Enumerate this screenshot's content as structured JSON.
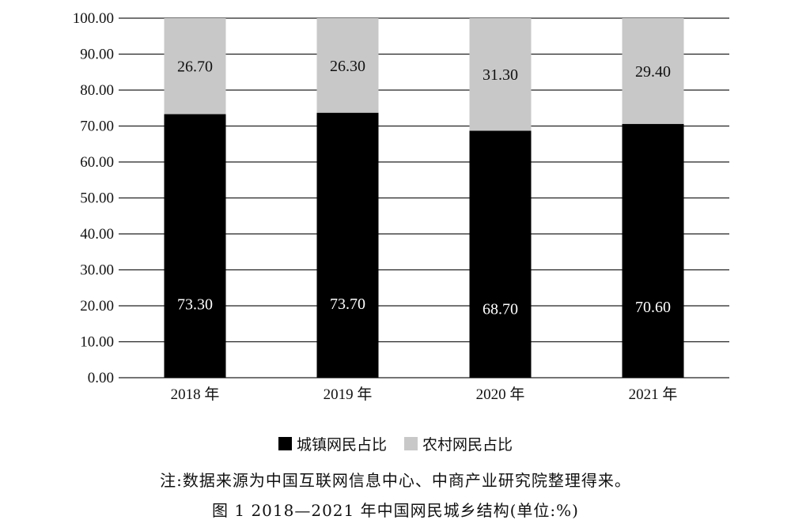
{
  "chart_data": {
    "type": "bar",
    "stacked": true,
    "categories": [
      "2018 年",
      "2019 年",
      "2020 年",
      "2021 年"
    ],
    "series": [
      {
        "name": "城镇网民占比",
        "color": "#000000",
        "label_color": "#ffffff",
        "values": [
          73.3,
          73.7,
          68.7,
          70.6
        ],
        "labels": [
          "73.30",
          "73.70",
          "68.70",
          "70.60"
        ]
      },
      {
        "name": "农村网民占比",
        "color": "#c8c8c8",
        "label_color": "#111111",
        "values": [
          26.7,
          26.3,
          31.3,
          29.4
        ],
        "labels": [
          "26.70",
          "26.30",
          "31.30",
          "29.40"
        ]
      }
    ],
    "ylim": [
      0,
      100
    ],
    "yticks": [
      "0.00",
      "10.00",
      "20.00",
      "30.00",
      "40.00",
      "50.00",
      "60.00",
      "70.00",
      "80.00",
      "90.00",
      "100.00"
    ],
    "grid": true,
    "legend_position": "bottom"
  },
  "legend": {
    "urban": "城镇网民占比",
    "rural": "农村网民占比"
  },
  "note": "注:数据来源为中国互联网信息中心、中商产业研究院整理得来。",
  "caption": "图 1  2018—2021 年中国网民城乡结构(单位:%)"
}
